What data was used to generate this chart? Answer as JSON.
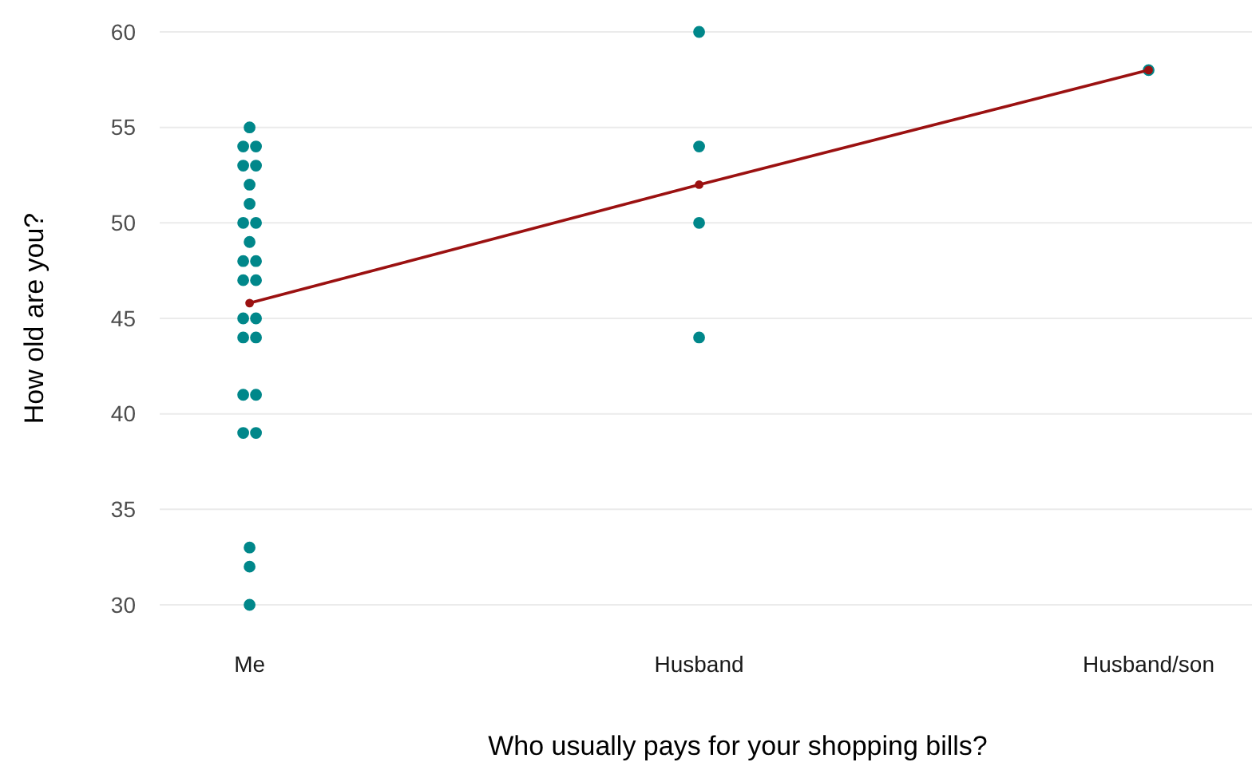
{
  "chart_data": {
    "type": "scatter",
    "xlabel": "Who usually pays for your shopping bills?",
    "ylabel": "How old are you?",
    "categories": [
      "Me",
      "Husband",
      "Husband/son"
    ],
    "ylim": [
      30,
      60
    ],
    "yticks": [
      30,
      35,
      40,
      45,
      50,
      55,
      60
    ],
    "grid": "y",
    "marker": "circle",
    "series": [
      {
        "color": "#00878a",
        "x": [
          "Me",
          "Me",
          "Me",
          "Me",
          "Me",
          "Me",
          "Me",
          "Me",
          "Me",
          "Me",
          "Me",
          "Me",
          "Me",
          "Me",
          "Me",
          "Me",
          "Me",
          "Me",
          "Me",
          "Me",
          "Me",
          "Me",
          "Me",
          "Me",
          "Me",
          "Husband",
          "Husband",
          "Husband",
          "Husband",
          "Husband/son"
        ],
        "values": [
          55,
          54,
          54,
          53,
          53,
          52,
          51,
          50,
          50,
          49,
          48,
          48,
          47,
          47,
          45,
          45,
          44,
          44,
          41,
          41,
          39,
          39,
          33,
          32,
          30,
          60,
          54,
          50,
          44,
          58
        ]
      },
      {
        "type": "line",
        "color": "#9b1111",
        "x": [
          "Me",
          "Husband",
          "Husband/son"
        ],
        "values": [
          45.8,
          52,
          58
        ]
      }
    ]
  }
}
